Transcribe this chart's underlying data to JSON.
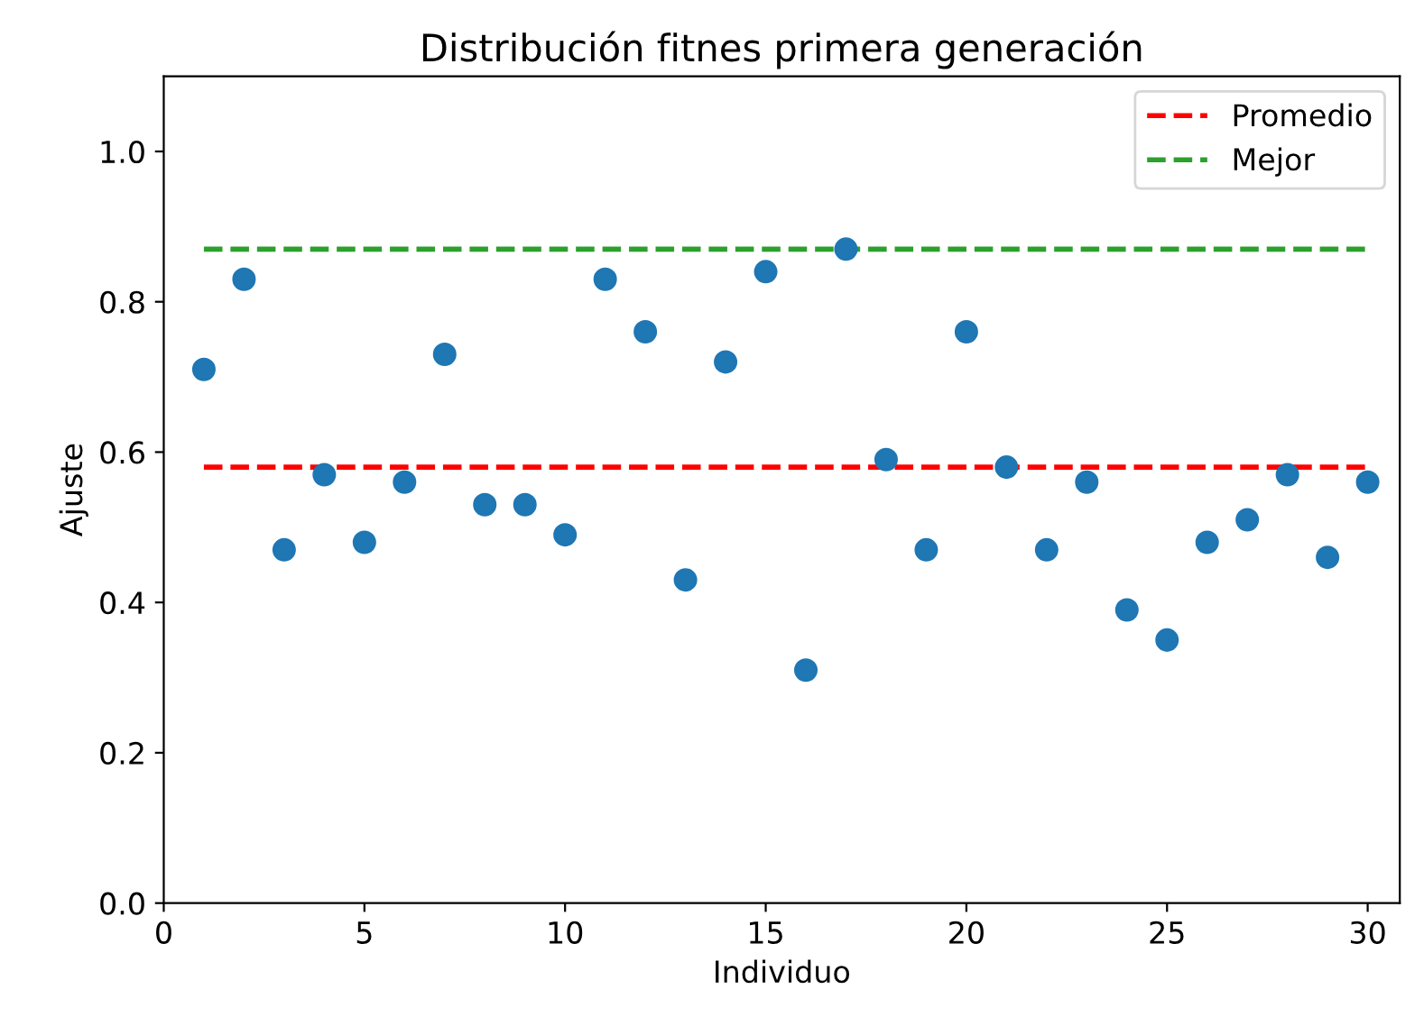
{
  "chart_data": {
    "type": "scatter",
    "title": "Distribución fitnes primera generación",
    "xlabel": "Individuo",
    "ylabel": "Ajuste",
    "xlim": [
      0,
      30.8
    ],
    "ylim": [
      0,
      1.1
    ],
    "xticks": [
      0,
      5,
      10,
      15,
      20,
      25,
      30
    ],
    "yticks": [
      {
        "value": 0,
        "label": "0.0"
      },
      {
        "value": 0.2,
        "label": "0.2"
      },
      {
        "value": 0.4,
        "label": "0.4"
      },
      {
        "value": 0.6,
        "label": "0.6"
      },
      {
        "value": 0.8,
        "label": "0.8"
      },
      {
        "value": 1.0,
        "label": "1.0"
      }
    ],
    "grid": false,
    "legend": "top right",
    "series": [
      {
        "color": "#1f77b4",
        "marker": "circle",
        "x": [
          1,
          2,
          3,
          4,
          5,
          6,
          7,
          8,
          9,
          10,
          11,
          12,
          13,
          14,
          15,
          16,
          17,
          18,
          19,
          20,
          21,
          22,
          23,
          24,
          25,
          26,
          27,
          28,
          29,
          30
        ],
        "values": [
          0.71,
          0.83,
          0.47,
          0.57,
          0.48,
          0.56,
          0.73,
          0.53,
          0.53,
          0.49,
          0.83,
          0.76,
          0.43,
          0.72,
          0.84,
          0.31,
          0.87,
          0.59,
          0.47,
          0.76,
          0.58,
          0.47,
          0.56,
          0.39,
          0.35,
          0.48,
          0.51,
          0.57,
          0.46,
          0.56
        ]
      },
      {
        "type": "line",
        "name": "Promedio",
        "color": "#ff0000",
        "line_style": "dashed",
        "x": [
          1,
          30
        ],
        "values": [
          0.58,
          0.58
        ]
      },
      {
        "type": "line",
        "name": "Mejor",
        "color": "#2ca02c",
        "line_style": "dashed",
        "x": [
          1,
          30
        ],
        "values": [
          0.87,
          0.87
        ]
      }
    ]
  }
}
